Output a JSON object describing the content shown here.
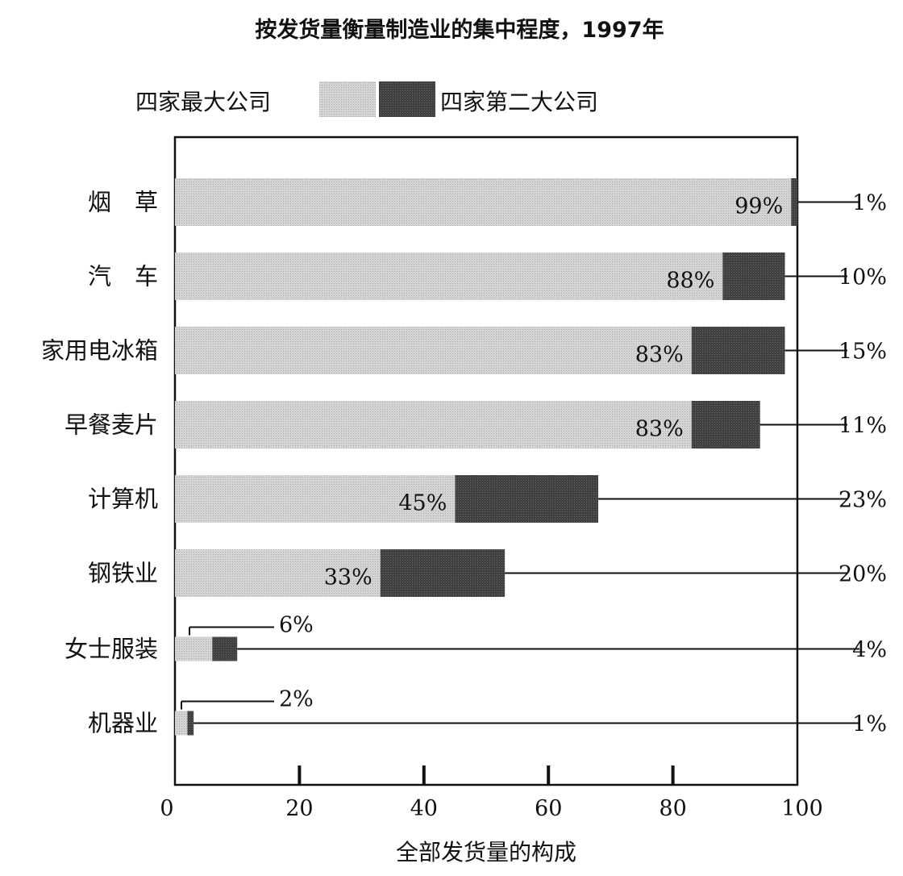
{
  "chart_data": {
    "type": "bar",
    "orientation": "horizontal",
    "stacked": true,
    "title": "按发货量衡量制造业的集中程度，1997年",
    "xlabel": "全部发货量的构成",
    "ylabel": "",
    "xlim": [
      0,
      100
    ],
    "x_ticks": [
      0,
      20,
      40,
      60,
      80,
      100
    ],
    "x_tick_labels": [
      "0",
      "20",
      "40",
      "60",
      "80",
      "100"
    ],
    "grid": false,
    "legend_position": "top",
    "categories": [
      "烟　草",
      "汽　车",
      "家用电冰箱",
      "早餐麦片",
      "计算机",
      "钢铁业",
      "女士服装",
      "机器业"
    ],
    "series": [
      {
        "name": "四家最大公司",
        "color": "#d8d8d8",
        "values": [
          99,
          88,
          83,
          83,
          45,
          33,
          6,
          2
        ],
        "labels": [
          "99%",
          "88%",
          "83%",
          "83%",
          "45%",
          "33%",
          "6%",
          "2%"
        ]
      },
      {
        "name": "四家第二大公司",
        "color": "#3c3c3c",
        "values": [
          1,
          10,
          15,
          11,
          23,
          20,
          4,
          1
        ],
        "labels": [
          "1%",
          "10%",
          "15%",
          "11%",
          "23%",
          "20%",
          "4%",
          "1%"
        ]
      }
    ]
  }
}
